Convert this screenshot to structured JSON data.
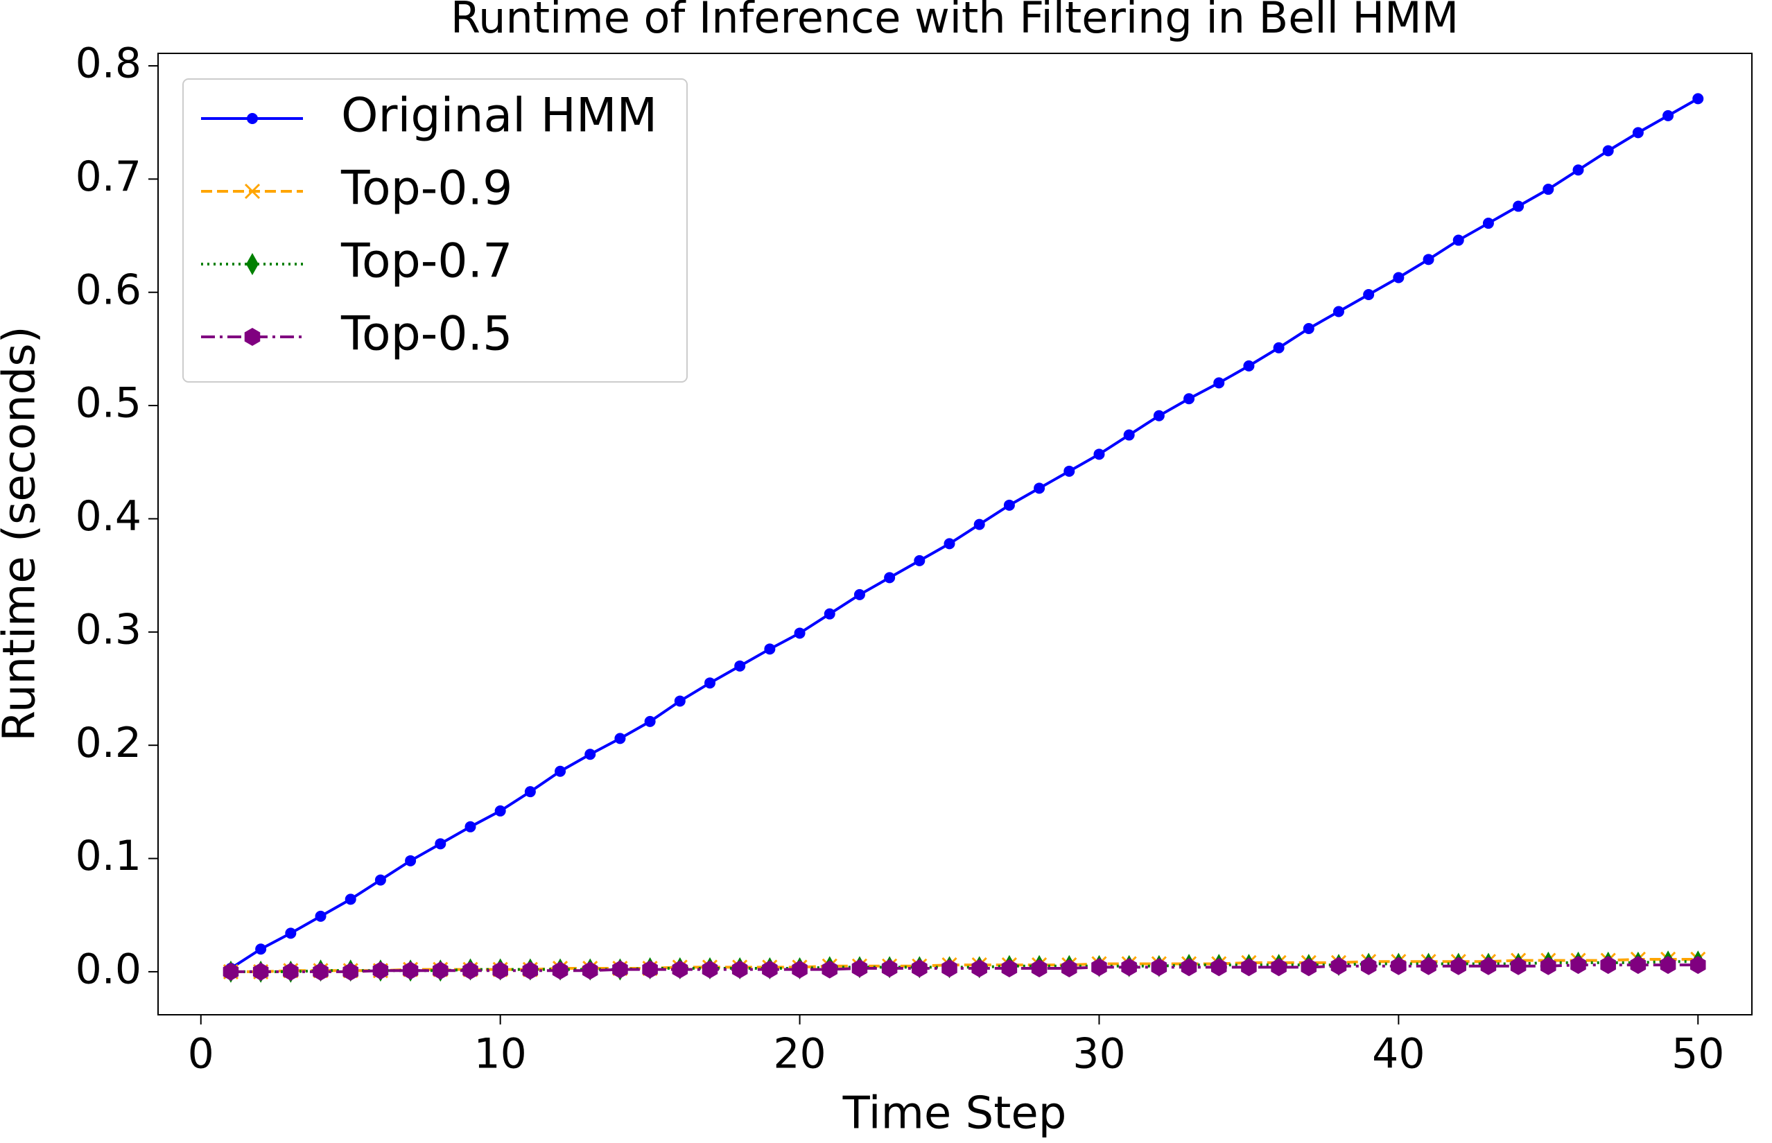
{
  "chart_data": {
    "type": "line",
    "title": "Runtime of Inference with Filtering in Bell HMM",
    "xlabel": "Time Step",
    "ylabel": "Runtime (seconds)",
    "x": [
      1,
      2,
      3,
      4,
      5,
      6,
      7,
      8,
      9,
      10,
      11,
      12,
      13,
      14,
      15,
      16,
      17,
      18,
      19,
      20,
      21,
      22,
      23,
      24,
      25,
      26,
      27,
      28,
      29,
      30,
      31,
      32,
      33,
      34,
      35,
      36,
      37,
      38,
      39,
      40,
      41,
      42,
      43,
      44,
      45,
      46,
      47,
      48,
      49,
      50
    ],
    "series": [
      {
        "name": "Original HMM",
        "color": "#0000ff",
        "marker": "circle",
        "linestyle": "solid",
        "values": [
          0.003,
          0.02,
          0.034,
          0.049,
          0.064,
          0.081,
          0.098,
          0.113,
          0.128,
          0.142,
          0.159,
          0.177,
          0.192,
          0.206,
          0.221,
          0.239,
          0.255,
          0.27,
          0.285,
          0.299,
          0.316,
          0.333,
          0.348,
          0.363,
          0.378,
          0.395,
          0.412,
          0.427,
          0.442,
          0.457,
          0.474,
          0.491,
          0.506,
          0.52,
          0.535,
          0.551,
          0.568,
          0.583,
          0.598,
          0.613,
          0.629,
          0.646,
          0.661,
          0.676,
          0.691,
          0.708,
          0.725,
          0.741,
          0.756,
          0.771
        ]
      },
      {
        "name": "Top-0.9",
        "color": "#ffa500",
        "marker": "x",
        "linestyle": "dashed",
        "values": [
          0.0,
          0.0,
          0.001,
          0.001,
          0.001,
          0.001,
          0.002,
          0.002,
          0.002,
          0.002,
          0.002,
          0.003,
          0.003,
          0.003,
          0.003,
          0.004,
          0.004,
          0.004,
          0.004,
          0.004,
          0.005,
          0.005,
          0.005,
          0.005,
          0.006,
          0.006,
          0.006,
          0.006,
          0.006,
          0.007,
          0.007,
          0.007,
          0.007,
          0.007,
          0.008,
          0.008,
          0.008,
          0.008,
          0.009,
          0.009,
          0.009,
          0.009,
          0.009,
          0.01,
          0.01,
          0.01,
          0.01,
          0.011,
          0.011,
          0.011
        ]
      },
      {
        "name": "Top-0.7",
        "color": "#008000",
        "marker": "diamond",
        "linestyle": "dotted",
        "values": [
          0.0,
          0.0,
          0.0,
          0.001,
          0.001,
          0.001,
          0.001,
          0.001,
          0.002,
          0.002,
          0.002,
          0.002,
          0.002,
          0.002,
          0.003,
          0.003,
          0.003,
          0.003,
          0.003,
          0.003,
          0.004,
          0.004,
          0.004,
          0.004,
          0.004,
          0.004,
          0.005,
          0.005,
          0.005,
          0.005,
          0.005,
          0.005,
          0.006,
          0.006,
          0.006,
          0.006,
          0.006,
          0.006,
          0.007,
          0.007,
          0.007,
          0.007,
          0.007,
          0.007,
          0.008,
          0.008,
          0.008,
          0.008,
          0.009,
          0.009
        ]
      },
      {
        "name": "Top-0.5",
        "color": "#800080",
        "marker": "hexagon",
        "linestyle": "dashdot",
        "values": [
          0.0,
          0.0,
          0.0,
          0.0,
          0.0,
          0.001,
          0.001,
          0.001,
          0.001,
          0.001,
          0.001,
          0.001,
          0.001,
          0.002,
          0.002,
          0.002,
          0.002,
          0.002,
          0.002,
          0.002,
          0.002,
          0.003,
          0.003,
          0.003,
          0.003,
          0.003,
          0.003,
          0.003,
          0.003,
          0.004,
          0.004,
          0.004,
          0.004,
          0.004,
          0.004,
          0.004,
          0.004,
          0.005,
          0.005,
          0.005,
          0.005,
          0.005,
          0.005,
          0.005,
          0.005,
          0.006,
          0.006,
          0.006,
          0.006,
          0.006
        ]
      }
    ],
    "xlim": [
      -1.43,
      51.8
    ],
    "ylim": [
      -0.038,
      0.811
    ],
    "xticks": [
      0,
      10,
      20,
      30,
      40,
      50
    ],
    "yticks": [
      {
        "value": 0,
        "label": "0.0"
      },
      0.1,
      0.2,
      0.3,
      0.4,
      0.5,
      0.6,
      0.7,
      0.8
    ],
    "grid": false,
    "legend": "upper left"
  }
}
